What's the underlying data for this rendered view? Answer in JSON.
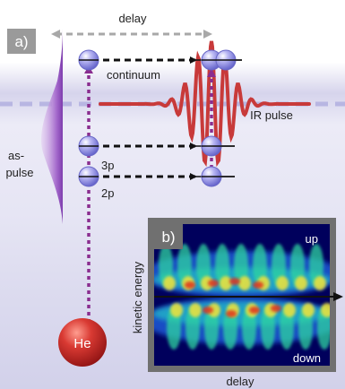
{
  "panel_a": {
    "tag": "a)",
    "delay_label": "delay",
    "continuum_label": "continuum",
    "ir_pulse_label": "IR pulse",
    "as_pulse_label_line1": "as-",
    "as_pulse_label_line2": "pulse",
    "state_3p": "3p",
    "state_2p": "2p",
    "atom_label": "He"
  },
  "panel_b": {
    "tag": "b)",
    "up_label": "up",
    "down_label": "down",
    "y_axis_label": "kinetic energy",
    "x_axis_label": "delay"
  },
  "colors": {
    "background_top": "#ffffff",
    "background_band": "#d8d6ee",
    "as_pulse": "#9a5cc0",
    "ir_pulse": "#c83a3a",
    "transition_dots": "#8a2d8f",
    "arrow_dashes": "#111111",
    "atom": "#c92a2a",
    "state_sphere": "#8f8ee0",
    "spectrogram_frame": "#6f6f6f",
    "spectrogram_bg": "#000060"
  }
}
